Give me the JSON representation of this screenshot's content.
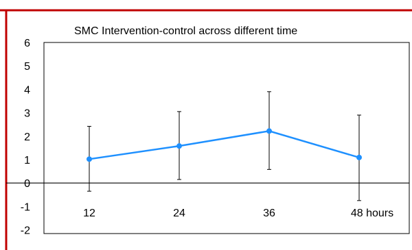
{
  "colors": {
    "border": "#c00000",
    "series": "#1e90ff",
    "axis": "#000000",
    "errorbar": "#000000"
  },
  "chart_data": {
    "type": "line",
    "title": "SMC  Intervention-control across different time",
    "xlabel": "",
    "ylabel": "",
    "categories": [
      "12",
      "24",
      "36",
      "48 hours"
    ],
    "series": [
      {
        "values": [
          1.02,
          1.58,
          2.22,
          1.09
        ],
        "error_upper": [
          2.42,
          3.05,
          3.9,
          2.9
        ],
        "error_lower": [
          -0.35,
          0.15,
          0.58,
          -0.75
        ]
      }
    ],
    "ylim": [
      -2,
      6
    ],
    "yticks": [
      "6",
      "5",
      "4",
      "3",
      "2",
      "1",
      "0",
      "-1",
      "-2"
    ],
    "grid": false,
    "legend": "none"
  }
}
